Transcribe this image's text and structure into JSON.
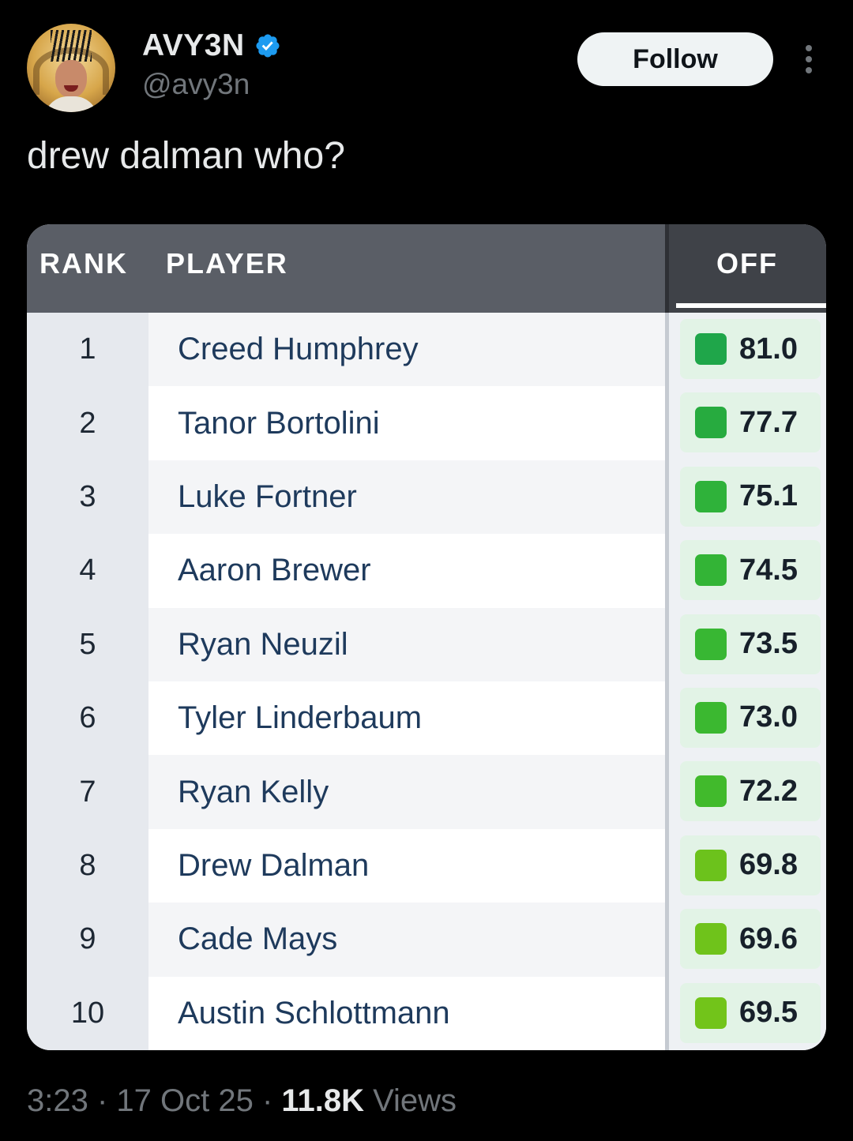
{
  "author": {
    "display_name": "AVY3N",
    "handle": "@avy3n",
    "verified": true,
    "avatar_icon": "profile-photo"
  },
  "actions": {
    "follow_label": "Follow",
    "more_icon": "more-vertical-icon"
  },
  "tweet": {
    "text": "drew dalman who?"
  },
  "table": {
    "headers": {
      "rank": "RANK",
      "player": "PLAYER",
      "off": "OFF"
    },
    "rows": [
      {
        "rank": "1",
        "player": "Creed Humphrey",
        "off": "81.0",
        "color": "#1fa64a"
      },
      {
        "rank": "2",
        "player": "Tanor Bortolini",
        "off": "77.7",
        "color": "#27ab3f"
      },
      {
        "rank": "3",
        "player": "Luke Fortner",
        "off": "75.1",
        "color": "#2fb23a"
      },
      {
        "rank": "4",
        "player": "Aaron Brewer",
        "off": "74.5",
        "color": "#33b436"
      },
      {
        "rank": "5",
        "player": "Ryan Neuzil",
        "off": "73.5",
        "color": "#38b733"
      },
      {
        "rank": "6",
        "player": "Tyler Linderbaum",
        "off": "73.0",
        "color": "#3bb830"
      },
      {
        "rank": "7",
        "player": "Ryan Kelly",
        "off": "72.2",
        "color": "#41ba2c"
      },
      {
        "rank": "8",
        "player": "Drew Dalman",
        "off": "69.8",
        "color": "#6cc21c"
      },
      {
        "rank": "9",
        "player": "Cade Mays",
        "off": "69.6",
        "color": "#6fc31b"
      },
      {
        "rank": "10",
        "player": "Austin Schlottmann",
        "off": "69.5",
        "color": "#72c41a"
      }
    ]
  },
  "meta": {
    "time": "3:23",
    "date": "17 Oct 25",
    "separator": "·",
    "views_count": "11.8K",
    "views_label": "Views"
  },
  "colors": {
    "background": "#000000",
    "verified_badge": "#1d9bf0",
    "header_bg": "#5a5e66",
    "off_header_bg": "#3f4248"
  }
}
